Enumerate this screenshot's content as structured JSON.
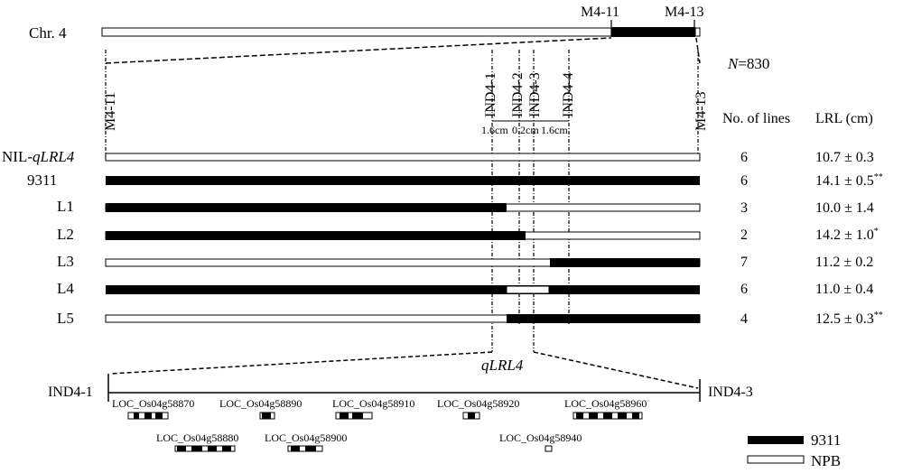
{
  "chromosome": {
    "label": "Chr. 4",
    "markers": [
      "M4-11",
      "M4-13"
    ],
    "population_label": "N",
    "population_value": "=830"
  },
  "fine_map": {
    "left_marker": "M4-11",
    "right_marker": "M4-13",
    "ind_markers": [
      "IND4-1",
      "IND4-2",
      "IND4-3",
      "IND4-4"
    ],
    "distances": [
      "1.6cm",
      "0.2cm",
      "1.6cm"
    ],
    "col_lines": "No. of lines",
    "col_lrl": "LRL (cm)",
    "rows": [
      {
        "label": "NIL-",
        "label_italic": "qLRL4",
        "lines": "6",
        "lrl": "10.7 ± 0.3",
        "sig": ""
      },
      {
        "label": "9311",
        "label_italic": "",
        "lines": "6",
        "lrl": "14.1 ± 0.5",
        "sig": "**"
      },
      {
        "label": "L1",
        "label_italic": "",
        "lines": "3",
        "lrl": "10.0 ± 1.4",
        "sig": ""
      },
      {
        "label": "L2",
        "label_italic": "",
        "lines": "2",
        "lrl": "14.2 ± 1.0",
        "sig": "*"
      },
      {
        "label": "L3",
        "label_italic": "",
        "lines": "7",
        "lrl": "11.2 ± 0.2",
        "sig": ""
      },
      {
        "label": "L4",
        "label_italic": "",
        "lines": "6",
        "lrl": "11.0 ± 0.4",
        "sig": ""
      },
      {
        "label": "L5",
        "label_italic": "",
        "lines": "4",
        "lrl": "12.5 ± 0.3",
        "sig": "**"
      }
    ]
  },
  "gene_region": {
    "qtl_label": "qLRL4",
    "left_marker": "IND4-1",
    "right_marker": "IND4-3",
    "genes": [
      "LOC_Os04g58870",
      "LOC_Os04g58890",
      "LOC_Os04g58910",
      "LOC_Os04g58920",
      "LOC_Os04g58960",
      "LOC_Os04g58880",
      "LOC_Os04g58900",
      "LOC_Os04g58940"
    ]
  },
  "legend": {
    "items": [
      {
        "label": "9311",
        "color": "#000000"
      },
      {
        "label": "NPB",
        "color": "#ffffff"
      }
    ]
  }
}
